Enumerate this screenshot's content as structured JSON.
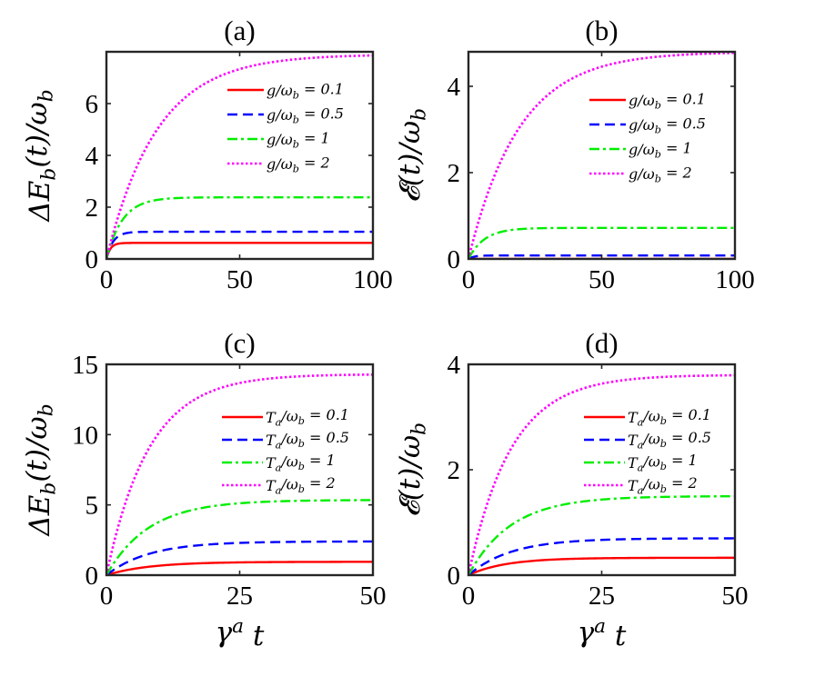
{
  "chart_data": [
    {
      "panel": "a",
      "title": "(a)",
      "type": "line",
      "ylabel": "ΔE_b(t)/ω_b",
      "xlabel": "",
      "xlim": [
        0,
        100
      ],
      "ylim": [
        0,
        8
      ],
      "xticks": [
        0,
        50,
        100
      ],
      "yticks": [
        0,
        2,
        4,
        6
      ],
      "legend": "top-right",
      "grid": false,
      "series": [
        {
          "name": "g/ω_b = 0.1",
          "color": "#ff0000",
          "dash": "solid",
          "steady": 0.62,
          "tau": 1.5
        },
        {
          "name": "g/ω_b = 0.5",
          "color": "#0000ff",
          "dash": "dashed",
          "steady": 1.05,
          "tau": 2.5
        },
        {
          "name": "g/ω_b = 1",
          "color": "#00ee00",
          "dash": "dashdot",
          "steady": 2.38,
          "tau": 6
        },
        {
          "name": "g/ω_b = 2",
          "color": "#ff00ff",
          "dash": "dotted",
          "steady": 7.9,
          "tau": 19
        }
      ]
    },
    {
      "panel": "b",
      "title": "(b)",
      "type": "line",
      "ylabel": "𝓔(t)/ω_b",
      "xlabel": "",
      "xlim": [
        0,
        100
      ],
      "ylim": [
        0,
        4.8
      ],
      "xticks": [
        0,
        50,
        100
      ],
      "yticks": [
        0,
        2,
        4
      ],
      "legend": "top-right",
      "grid": false,
      "series": [
        {
          "name": "g/ω_b = 0.1",
          "color": "#ff0000",
          "dash": "solid",
          "steady": 0.0,
          "tau": 1
        },
        {
          "name": "g/ω_b = 0.5",
          "color": "#0000ff",
          "dash": "dashed",
          "steady": 0.08,
          "tau": 2
        },
        {
          "name": "g/ω_b = 1",
          "color": "#00ee00",
          "dash": "dashdot",
          "steady": 0.72,
          "tau": 6
        },
        {
          "name": "g/ω_b = 2",
          "color": "#ff00ff",
          "dash": "dotted",
          "steady": 4.8,
          "tau": 19
        }
      ]
    },
    {
      "panel": "c",
      "title": "(c)",
      "type": "line",
      "ylabel": "ΔE_b(t)/ω_b",
      "xlabel": "γ^a t",
      "xlim": [
        0,
        50
      ],
      "ylim": [
        0,
        15
      ],
      "xticks": [
        0,
        25,
        50
      ],
      "yticks": [
        0,
        5,
        10,
        15
      ],
      "legend": "top-right",
      "grid": false,
      "series": [
        {
          "name": "T_a/ω_b = 0.1",
          "color": "#ff0000",
          "dash": "solid",
          "steady": 0.95,
          "tau": 8
        },
        {
          "name": "T_a/ω_b = 0.5",
          "color": "#0000ff",
          "dash": "dashed",
          "steady": 2.4,
          "tau": 8
        },
        {
          "name": "T_a/ω_b = 1",
          "color": "#00ee00",
          "dash": "dashdot",
          "steady": 5.35,
          "tau": 8
        },
        {
          "name": "T_a/ω_b = 2",
          "color": "#ff00ff",
          "dash": "dotted",
          "steady": 14.3,
          "tau": 8
        }
      ]
    },
    {
      "panel": "d",
      "title": "(d)",
      "type": "line",
      "ylabel": "𝓔(t)/ω_b",
      "xlabel": "γ^a t",
      "xlim": [
        0,
        50
      ],
      "ylim": [
        0,
        4
      ],
      "xticks": [
        0,
        25,
        50
      ],
      "yticks": [
        0,
        2,
        4
      ],
      "legend": "top-right",
      "grid": false,
      "series": [
        {
          "name": "T_a/ω_b = 0.1",
          "color": "#ff0000",
          "dash": "solid",
          "steady": 0.33,
          "tau": 7
        },
        {
          "name": "T_a/ω_b = 0.5",
          "color": "#0000ff",
          "dash": "dashed",
          "steady": 0.7,
          "tau": 8
        },
        {
          "name": "T_a/ω_b = 1",
          "color": "#00ee00",
          "dash": "dashdot",
          "steady": 1.5,
          "tau": 8
        },
        {
          "name": "T_a/ω_b = 2",
          "color": "#ff00ff",
          "dash": "dotted",
          "steady": 3.8,
          "tau": 8
        }
      ]
    }
  ]
}
